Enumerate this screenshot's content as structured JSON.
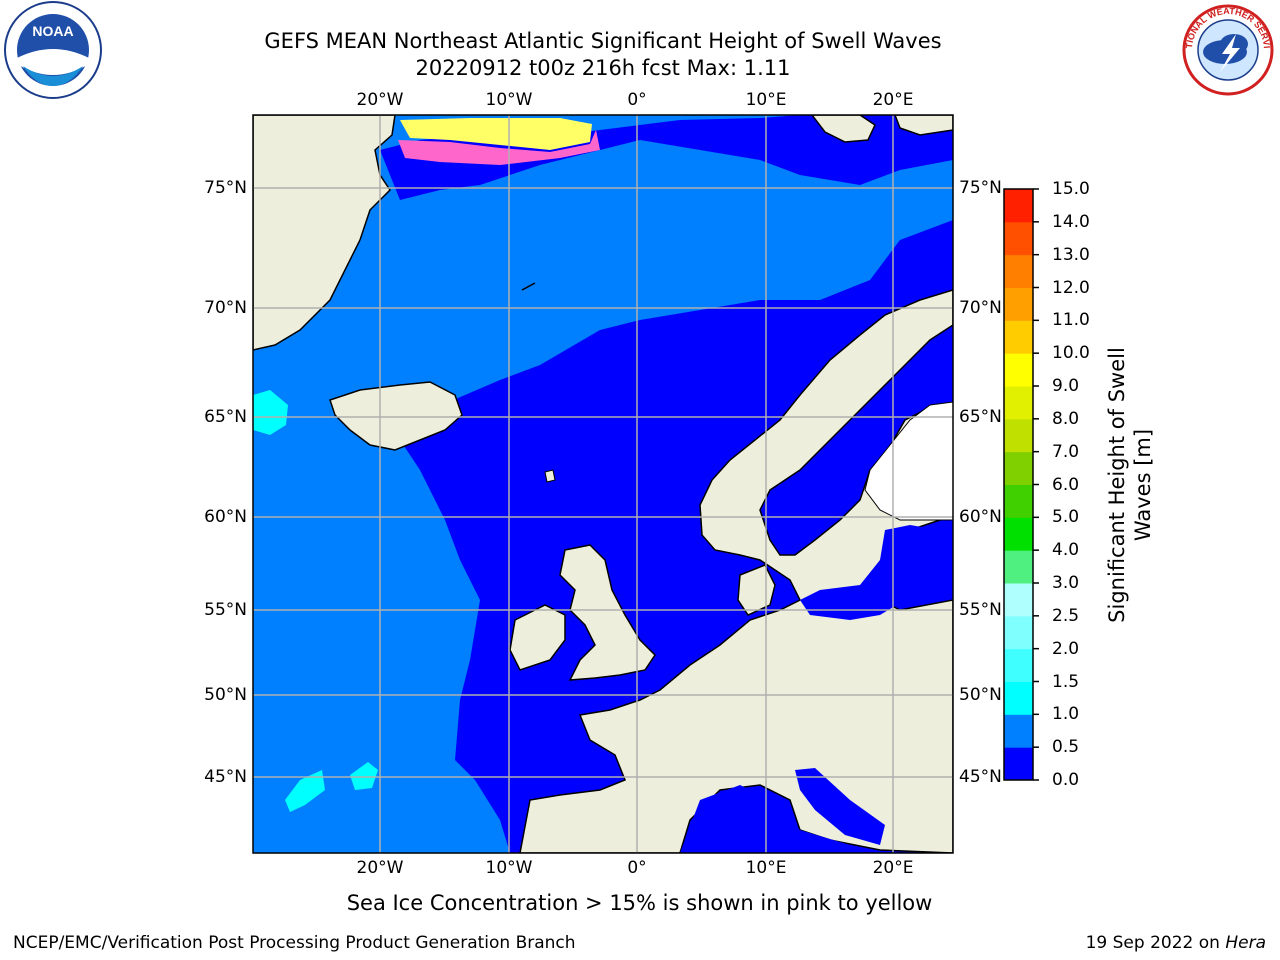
{
  "header": {
    "title_line1": "GEFS MEAN Northeast Atlantic Significant Height of Swell Waves",
    "title_line2": "20220912 t00z 216h fcst   Max: 1.11"
  },
  "map": {
    "lon_labels": [
      "20°W",
      "10°W",
      "0°",
      "10°E",
      "20°E"
    ],
    "lat_labels": [
      "75°N",
      "70°N",
      "65°N",
      "60°N",
      "55°N",
      "50°N",
      "45°N"
    ],
    "colors": {
      "land": "#eeeedc",
      "ocean_low": "#0000ff",
      "ocean_mid": "#0080ff",
      "ocean_cyan": "#00ffff",
      "ice_pink": "#ff66cc",
      "ice_yellow": "#ffff66",
      "grid": "#b0b0b0"
    }
  },
  "colorbar": {
    "title": "Significant Height of Swell Waves [m]",
    "ticks": [
      "0.0",
      "0.5",
      "1.0",
      "1.5",
      "2.0",
      "2.5",
      "3.0",
      "4.0",
      "5.0",
      "6.0",
      "7.0",
      "8.0",
      "9.0",
      "10.0",
      "11.0",
      "12.0",
      "13.0",
      "14.0",
      "15.0"
    ],
    "colors": [
      "#0000ff",
      "#0080ff",
      "#00ffff",
      "#40ffff",
      "#80ffff",
      "#b0ffff",
      "#50f080",
      "#00e000",
      "#40d000",
      "#80d000",
      "#c0e000",
      "#e0f000",
      "#ffff00",
      "#ffcc00",
      "#ffa000",
      "#ff8000",
      "#ff5000",
      "#ff2000"
    ]
  },
  "footer": {
    "note": "Sea Ice Concentration > 15% is shown in pink to yellow",
    "credit": "NCEP/EMC/Verification Post Processing Product Generation Branch",
    "date": "19 Sep 2022 on",
    "host": "Hera"
  },
  "logos": {
    "noaa_text": "NOAA",
    "nws_text": "NATIONAL WEATHER SERVICE"
  }
}
